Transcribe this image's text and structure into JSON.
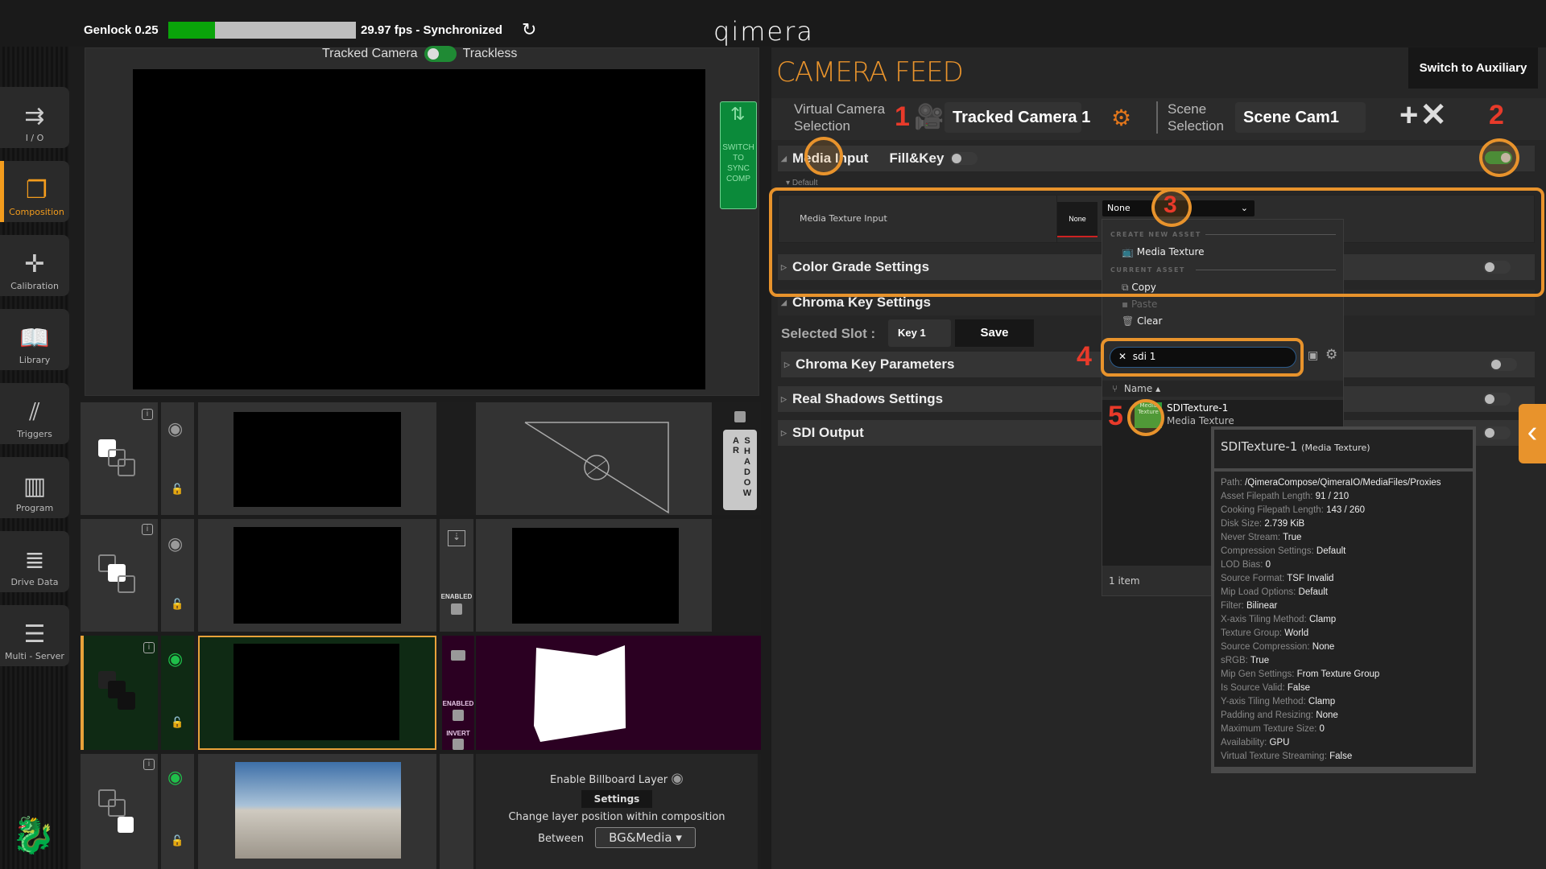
{
  "topbar": {
    "genlock": "Genlock 0.25",
    "genlock_fill_percent": 25,
    "fps_status": "29.97 fps - Synchronized",
    "refresh_icon": "refresh-icon",
    "logo": "qimera",
    "tracked_label": "Tracked Camera",
    "trackless_label": "Trackless"
  },
  "sidebar": {
    "items": [
      {
        "label": "I / O",
        "icon": "io-arrows-icon"
      },
      {
        "label": "Composition",
        "icon": "composition-icon",
        "active": true
      },
      {
        "label": "Calibration",
        "icon": "calibration-icon"
      },
      {
        "label": "Library",
        "icon": "book-icon"
      },
      {
        "label": "Triggers",
        "icon": "triggers-icon"
      },
      {
        "label": "Program",
        "icon": "program-icon"
      },
      {
        "label": "Drive Data",
        "icon": "database-icon"
      },
      {
        "label": "Multi - Server",
        "icon": "server-icon"
      }
    ]
  },
  "viewport": {
    "sync_button": "SWITCH TO SYNC COMP"
  },
  "layers": {
    "enabled": "ENABLED",
    "invert": "INVERT",
    "ar_shadow_a": "AR",
    "ar_shadow_b": "SHADOW",
    "billboard": {
      "enable_label": "Enable Billboard Layer",
      "settings": "Settings",
      "change_position": "Change layer position within composition",
      "between": "Between",
      "between_value": "BG&Media"
    }
  },
  "camera_feed": {
    "title": "CAMERA FEED",
    "switch_aux": "Switch to Auxiliary",
    "virtual_camera_label": "Virtual Camera Selection",
    "virtual_camera_value": "Tracked Camera 1",
    "scene_label": "Scene Selection",
    "scene_value": "Scene Cam1",
    "media_input": "Media Input",
    "fill_key": "Fill&Key",
    "default": "Default",
    "media_texture_input": "Media Texture Input",
    "thumb_none": "None",
    "combo_value": "None",
    "color_grade": "Color Grade Settings",
    "chroma_key_settings": "Chroma Key Settings",
    "selected_slot_label": "Selected Slot :",
    "selected_slot_value": "Key 1",
    "save": "Save",
    "chroma_key_params": "Chroma Key Parameters",
    "real_shadows": "Real Shadows Settings",
    "sdi_output": "SDI Output",
    "media_input_enabled": true
  },
  "asset_menu": {
    "create_new_asset": "CREATE NEW ASSET",
    "media_texture": "Media Texture",
    "current_asset": "CURRENT ASSET",
    "copy": "Copy",
    "paste": "Paste",
    "clear": "Clear",
    "search_value": "sdi 1",
    "column_name": "Name",
    "item_name": "SDITexture-1",
    "item_type": "Media Texture",
    "thumb_text": "Media Texture",
    "count": "1 item"
  },
  "tooltip": {
    "title": "SDITexture-1",
    "type": "(Media Texture)",
    "rows": [
      {
        "k": "Path:",
        "v": "/QimeraCompose/QimeraIO/MediaFiles/Proxies"
      },
      {
        "k": "Asset Filepath Length:",
        "v": "91 / 210"
      },
      {
        "k": "Cooking Filepath Length:",
        "v": "143 / 260"
      },
      {
        "k": "Disk Size:",
        "v": "2.739 KiB"
      },
      {
        "k": "Never Stream:",
        "v": "True"
      },
      {
        "k": "Compression Settings:",
        "v": "Default"
      },
      {
        "k": "LOD Bias:",
        "v": "0"
      },
      {
        "k": "Source Format:",
        "v": "TSF Invalid"
      },
      {
        "k": "Mip Load Options:",
        "v": "Default"
      },
      {
        "k": "Filter:",
        "v": "Bilinear"
      },
      {
        "k": "X-axis Tiling Method:",
        "v": "Clamp"
      },
      {
        "k": "Texture Group:",
        "v": "World"
      },
      {
        "k": "Source Compression:",
        "v": "None"
      },
      {
        "k": "sRGB:",
        "v": "True"
      },
      {
        "k": "Mip Gen Settings:",
        "v": "From Texture Group"
      },
      {
        "k": "Is Source Valid:",
        "v": "False"
      },
      {
        "k": "Y-axis Tiling Method:",
        "v": "Clamp"
      },
      {
        "k": "Padding and Resizing:",
        "v": "None"
      },
      {
        "k": "Maximum Texture Size:",
        "v": "0"
      },
      {
        "k": "Availability:",
        "v": "GPU"
      },
      {
        "k": "Virtual Texture Streaming:",
        "v": "False"
      }
    ]
  },
  "annotations": [
    "1",
    "2",
    "3",
    "4",
    "5"
  ],
  "colors": {
    "accent": "#e8932c",
    "annotation": "#e83a2a",
    "green": "#1f8a34",
    "layer_selected": "#0f2a14",
    "matte": "#2b0022"
  }
}
